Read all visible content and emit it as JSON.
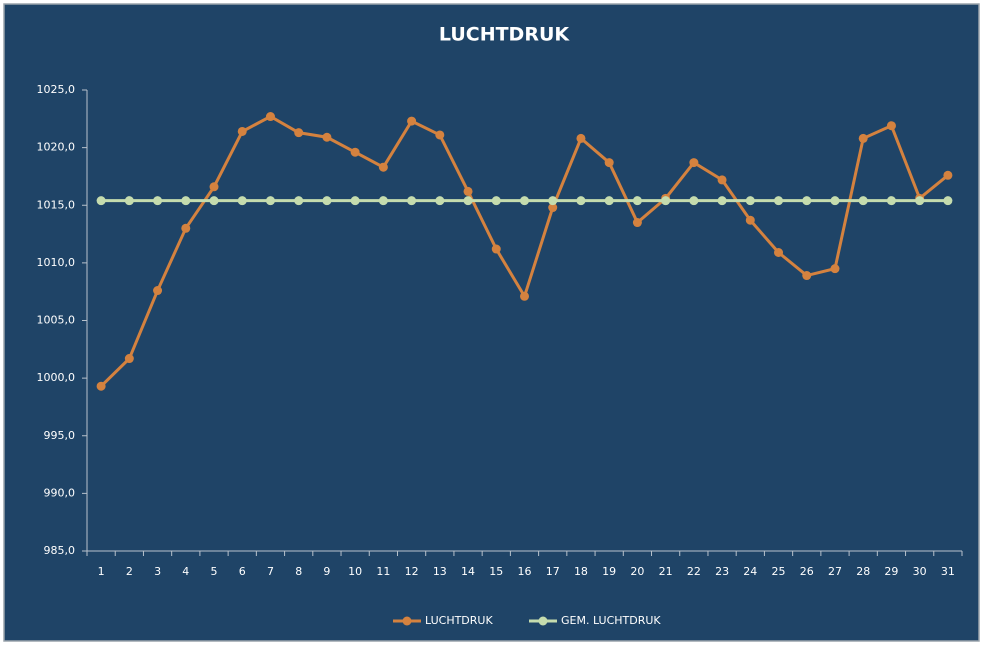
{
  "chart_data": {
    "type": "line",
    "title": "LUCHTDRUK",
    "categories": [
      1,
      2,
      3,
      4,
      5,
      6,
      7,
      8,
      9,
      10,
      11,
      12,
      13,
      14,
      15,
      16,
      17,
      18,
      19,
      20,
      21,
      22,
      23,
      24,
      25,
      26,
      27,
      28,
      29,
      30,
      31
    ],
    "series": [
      {
        "name": "LUCHTDRUK",
        "color": "#d4823f",
        "values": [
          999.3,
          1001.7,
          1007.6,
          1013.0,
          1016.6,
          1021.4,
          1022.7,
          1021.3,
          1020.9,
          1019.6,
          1018.3,
          1022.3,
          1021.1,
          1016.2,
          1011.2,
          1007.1,
          1014.8,
          1020.8,
          1018.7,
          1013.5,
          1015.6,
          1018.7,
          1017.2,
          1013.7,
          1010.9,
          1008.9,
          1009.5,
          1020.8,
          1021.9,
          1015.6,
          1017.6
        ]
      },
      {
        "name": "GEM. LUCHTDRUK",
        "color": "#c5dcae",
        "values": [
          1015.4,
          1015.4,
          1015.4,
          1015.4,
          1015.4,
          1015.4,
          1015.4,
          1015.4,
          1015.4,
          1015.4,
          1015.4,
          1015.4,
          1015.4,
          1015.4,
          1015.4,
          1015.4,
          1015.4,
          1015.4,
          1015.4,
          1015.4,
          1015.4,
          1015.4,
          1015.4,
          1015.4,
          1015.4,
          1015.4,
          1015.4,
          1015.4,
          1015.4,
          1015.4,
          1015.4
        ]
      }
    ],
    "ylim": [
      985,
      1025
    ],
    "yticks": [
      {
        "value": 985,
        "label": "985,0"
      },
      {
        "value": 990,
        "label": "990,0"
      },
      {
        "value": 995,
        "label": "995,0"
      },
      {
        "value": 1000,
        "label": "1000,0"
      },
      {
        "value": 1005,
        "label": "1005,0"
      },
      {
        "value": 1010,
        "label": "1010,0"
      },
      {
        "value": 1015,
        "label": "1015,0"
      },
      {
        "value": 1020,
        "label": "1020,0"
      },
      {
        "value": 1025,
        "label": "1025,0"
      }
    ],
    "grid": false,
    "legend": "bottom"
  }
}
